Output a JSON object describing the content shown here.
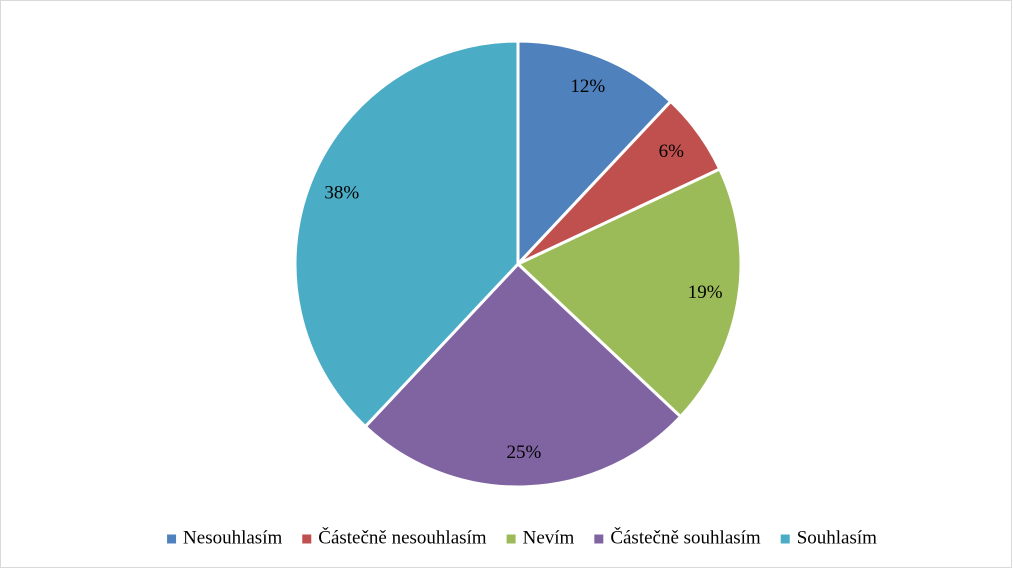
{
  "chart_data": {
    "type": "pie",
    "categories": [
      "Nesouhlasím",
      "Částečně nesouhlasím",
      "Nevím",
      "Částečně souhlasím",
      "Souhlasím"
    ],
    "values": [
      12,
      6,
      19,
      25,
      38
    ],
    "value_labels": [
      "12%",
      "6%",
      "19%",
      "25%",
      "38%"
    ],
    "colors": [
      "#4f81bd",
      "#c0504d",
      "#9bbb59",
      "#8064a2",
      "#4bacc6"
    ],
    "legend": "bottom"
  }
}
